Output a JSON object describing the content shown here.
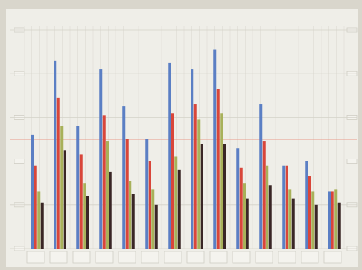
{
  "chart_data": {
    "type": "bar",
    "title": "",
    "xlabel": "",
    "ylabel": "",
    "categories": [
      "",
      "",
      "",
      "",
      "",
      "",
      "",
      "",
      "",
      "",
      "",
      "",
      "",
      ""
    ],
    "ylim": [
      0,
      100
    ],
    "yticks": [
      0,
      20,
      40,
      60,
      80,
      100
    ],
    "grid": true,
    "reference_line": 50,
    "colors": {
      "series": [
        "#5b7fc4",
        "#d9463a",
        "#a8b15a",
        "#3a2626"
      ],
      "reference": "#e89a8a"
    },
    "series": [
      {
        "values": [
          52,
          86,
          56,
          82,
          65,
          50,
          85,
          82,
          91,
          46,
          66,
          38,
          40,
          26
        ]
      },
      {
        "values": [
          38,
          69,
          43,
          61,
          50,
          40,
          62,
          66,
          73,
          37,
          49,
          38,
          33,
          26
        ]
      },
      {
        "values": [
          26,
          56,
          30,
          49,
          31,
          27,
          42,
          59,
          62,
          30,
          38,
          27,
          26,
          27
        ]
      },
      {
        "values": [
          21,
          45,
          24,
          35,
          25,
          20,
          36,
          48,
          48,
          23,
          29,
          23,
          20,
          21
        ]
      }
    ]
  }
}
